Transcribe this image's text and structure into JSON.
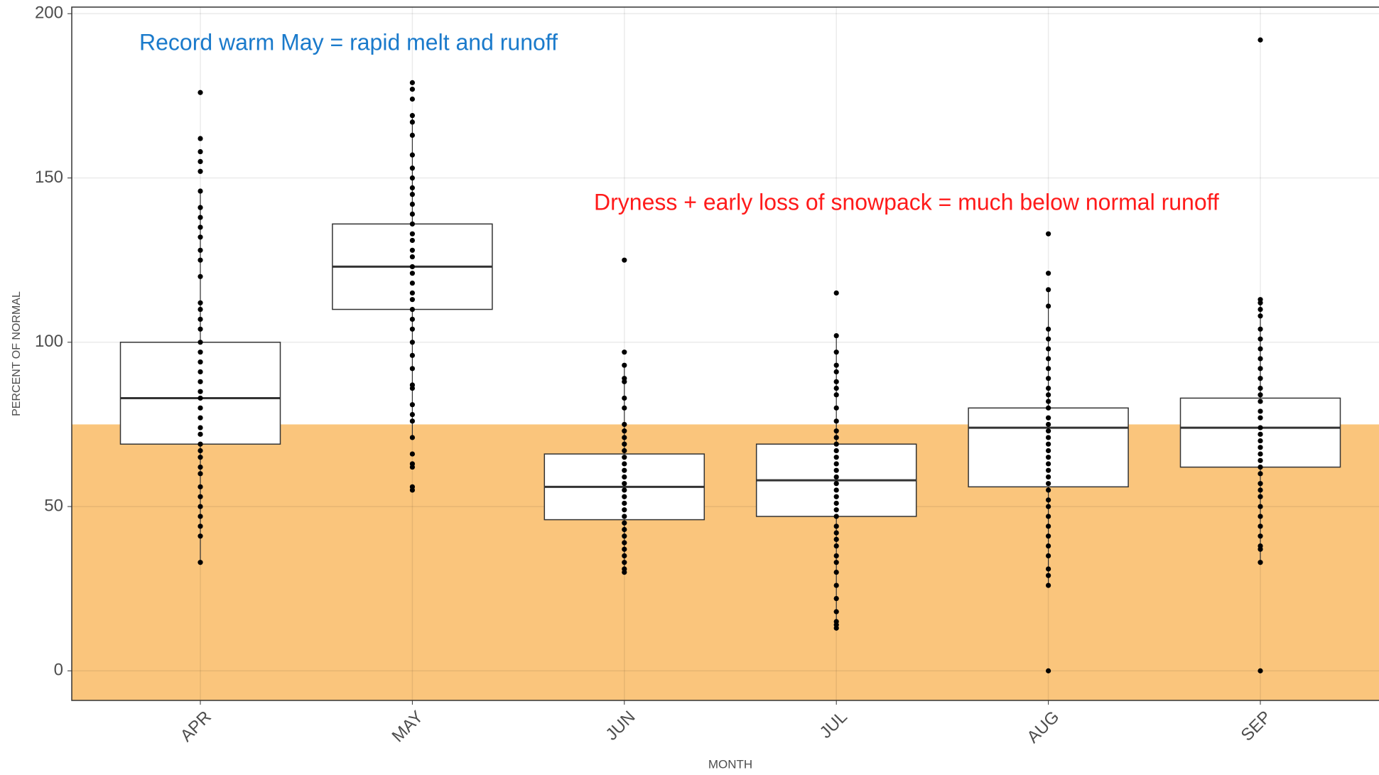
{
  "chart_data": {
    "type": "box",
    "x_label": "MONTH",
    "y_label": "PERCENT OF NORMAL",
    "categories": [
      "APR",
      "MAY",
      "JUN",
      "JUL",
      "AUG",
      "SEP"
    ],
    "boxes": [
      {
        "whisker_low": 33,
        "q1": 69,
        "median": 83,
        "q3": 100,
        "whisker_high": 146
      },
      {
        "whisker_low": 71,
        "q1": 110,
        "median": 123,
        "q3": 136,
        "whisker_high": 169
      },
      {
        "whisker_low": 30,
        "q1": 46,
        "median": 56,
        "q3": 66,
        "whisker_high": 93
      },
      {
        "whisker_low": 13,
        "q1": 47,
        "median": 58,
        "q3": 69,
        "whisker_high": 102
      },
      {
        "whisker_low": 26,
        "q1": 56,
        "median": 74,
        "q3": 80,
        "whisker_high": 116
      },
      {
        "whisker_low": 33,
        "q1": 62,
        "median": 74,
        "q3": 83,
        "whisker_high": 113
      }
    ],
    "points": [
      [
        176,
        162,
        158,
        155,
        152,
        146,
        141,
        138,
        135,
        132,
        128,
        125,
        120,
        112,
        110,
        107,
        104,
        100,
        97,
        94,
        91,
        88,
        85,
        83,
        80,
        77,
        74,
        72,
        69,
        67,
        65,
        62,
        60,
        56,
        53,
        50,
        47,
        44,
        41,
        33
      ],
      [
        179,
        177,
        174,
        169,
        167,
        163,
        157,
        153,
        150,
        147,
        145,
        142,
        139,
        136,
        133,
        131,
        128,
        126,
        123,
        121,
        118,
        115,
        113,
        110,
        107,
        104,
        100,
        96,
        92,
        87,
        86,
        81,
        78,
        76,
        71,
        66,
        63,
        62,
        56,
        55
      ],
      [
        125,
        97,
        93,
        89,
        88,
        83,
        80,
        75,
        73,
        71,
        69,
        67,
        65,
        63,
        61,
        59,
        57,
        55,
        53,
        51,
        49,
        47,
        45,
        43,
        41,
        39,
        37,
        35,
        33,
        31,
        30
      ],
      [
        115,
        102,
        97,
        93,
        91,
        88,
        86,
        84,
        80,
        76,
        73,
        71,
        69,
        67,
        65,
        63,
        61,
        59,
        57,
        55,
        53,
        51,
        49,
        47,
        44,
        42,
        40,
        38,
        35,
        33,
        30,
        26,
        22,
        18,
        15,
        14,
        13
      ],
      [
        133,
        121,
        116,
        111,
        104,
        101,
        98,
        95,
        92,
        89,
        86,
        84,
        82,
        80,
        77,
        75,
        73,
        71,
        69,
        67,
        65,
        63,
        61,
        59,
        57,
        55,
        52,
        50,
        47,
        44,
        41,
        38,
        35,
        31,
        29,
        26,
        0
      ],
      [
        192,
        113,
        112,
        110,
        108,
        104,
        101,
        98,
        95,
        92,
        89,
        86,
        84,
        82,
        79,
        77,
        74,
        72,
        70,
        68,
        66,
        64,
        62,
        60,
        57,
        55,
        53,
        50,
        47,
        44,
        41,
        38,
        37,
        33,
        0
      ]
    ],
    "point_color": "#000000",
    "shade_below": 75,
    "shade_color": "#fac57c",
    "ylim": [
      -9,
      202
    ],
    "yticks": [
      0,
      50,
      100,
      150,
      200
    ],
    "grid": true,
    "annotations": [
      {
        "text": "Record warm May = rapid melt and runoff",
        "color": "#1a7acb"
      },
      {
        "text": "Dryness + early loss of snowpack = much below normal runoff",
        "color": "#ff1a1a"
      }
    ]
  }
}
